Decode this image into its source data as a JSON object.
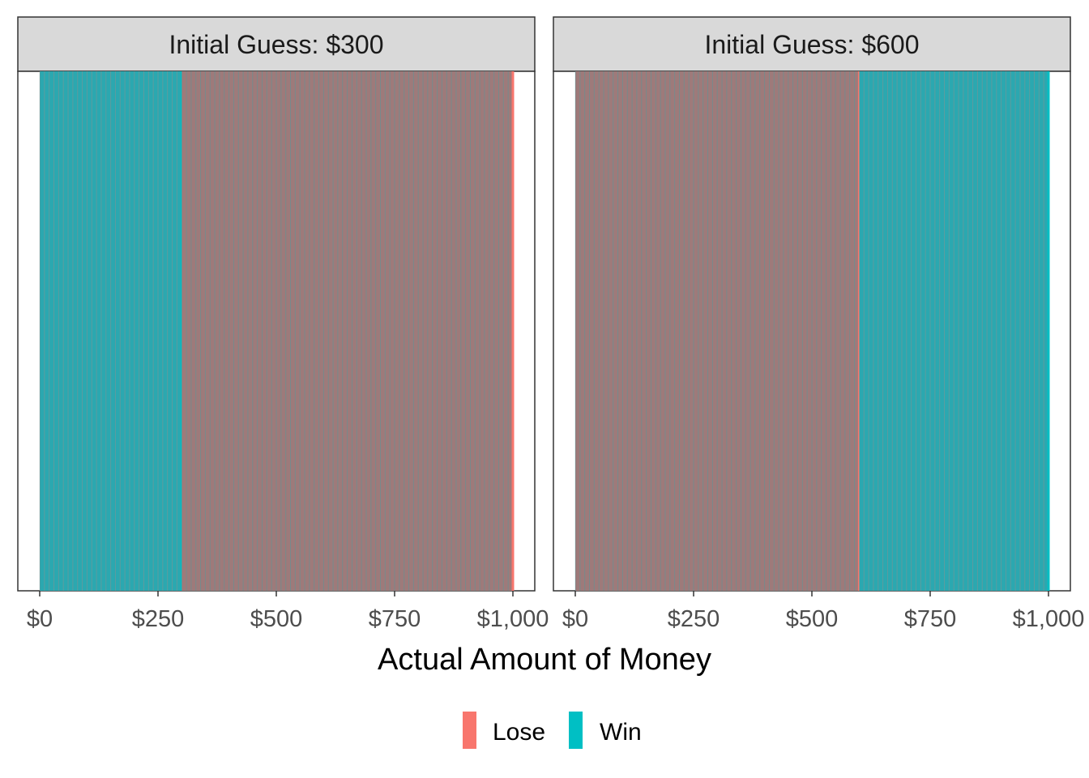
{
  "chart_data": {
    "type": "bar",
    "xlabel": "Actual Amount of Money",
    "ylabel": "",
    "x_range": [
      0,
      1000
    ],
    "x_ticks": [
      0,
      250,
      500,
      750,
      1000
    ],
    "x_tick_labels": [
      "$0",
      "$250",
      "$500",
      "$750",
      "$1,000"
    ],
    "legend_position": "bottom",
    "legend": [
      {
        "label": "Lose",
        "color": "#F8766D"
      },
      {
        "label": "Win",
        "color": "#00BFC4"
      }
    ],
    "grid": false,
    "panels": [
      {
        "strip_label": "Initial Guess: $300",
        "guess": 300,
        "segments": [
          {
            "outcome": "Win",
            "x_from": 0,
            "x_to": 300
          },
          {
            "outcome": "Lose",
            "x_from": 300,
            "x_to": 1000
          }
        ]
      },
      {
        "strip_label": "Initial Guess: $600",
        "guess": 600,
        "segments": [
          {
            "outcome": "Lose",
            "x_from": 0,
            "x_to": 600
          },
          {
            "outcome": "Win",
            "x_from": 600,
            "x_to": 1000
          }
        ]
      }
    ]
  }
}
